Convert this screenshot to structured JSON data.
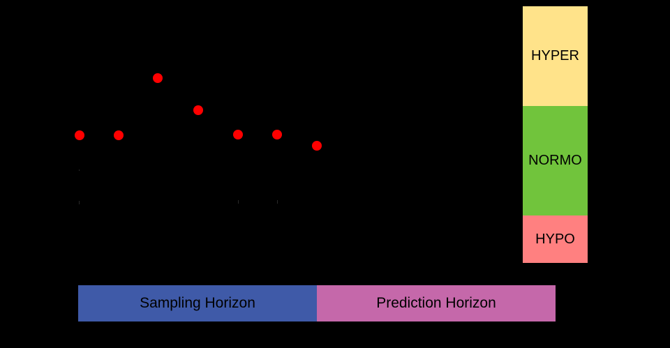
{
  "zones": [
    {
      "id": "hyper",
      "label": "HYPER",
      "color": "#ffe38a"
    },
    {
      "id": "normo",
      "label": "NORMO",
      "color": "#71c43c"
    },
    {
      "id": "hypo",
      "label": "HYPO",
      "color": "#ff8080"
    }
  ],
  "horizons": {
    "sampling": {
      "label": "Sampling Horizon",
      "color": "#3f5aa8"
    },
    "prediction": {
      "label": "Prediction Horizon",
      "color": "#c568aa"
    }
  },
  "samples": {
    "color": "#ff0000",
    "count": 7
  }
}
